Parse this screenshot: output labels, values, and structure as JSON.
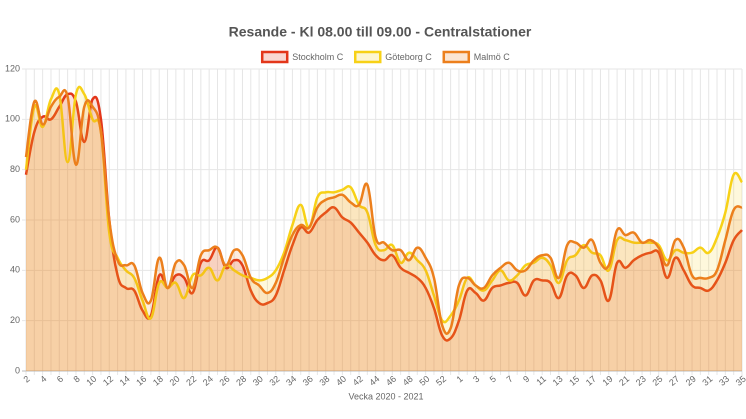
{
  "chart_data": {
    "type": "line",
    "title": "Resande - Kl 08.00 till 09.00 - Centralstationer",
    "x_label": "Vecka 2020 - 2021",
    "categories": [
      "2",
      null,
      "4",
      null,
      "6",
      null,
      "8",
      null,
      "10",
      null,
      "12",
      null,
      "14",
      null,
      "16",
      null,
      "18",
      null,
      "20",
      null,
      "22",
      null,
      "24",
      null,
      "26",
      null,
      "28",
      null,
      "30",
      null,
      "32",
      null,
      "34",
      null,
      "36",
      null,
      "38",
      null,
      "40",
      null,
      "42",
      null,
      "44",
      null,
      "46",
      null,
      "48",
      null,
      "50",
      null,
      "52",
      null,
      "1",
      null,
      "3",
      null,
      "5",
      null,
      "7",
      null,
      "9",
      null,
      "11",
      null,
      "13",
      null,
      "15",
      null,
      "17",
      null,
      "19",
      null,
      "21",
      null,
      "23",
      null,
      "25",
      null,
      "27",
      null,
      "29",
      null,
      "31",
      null,
      "33",
      null,
      "35"
    ],
    "series": [
      {
        "name": "Stockholm C",
        "color": "#e3361a",
        "values": [
          78,
          95,
          101,
          100,
          105,
          110,
          107,
          91,
          108,
          100,
          60,
          38,
          33,
          32,
          24,
          22,
          38,
          33,
          38,
          37,
          31,
          43,
          44,
          49,
          41,
          44,
          42,
          32,
          27,
          27,
          30,
          40,
          50,
          57,
          55,
          60,
          63,
          65,
          61,
          59,
          55,
          51,
          46,
          44,
          46,
          41,
          39,
          37,
          33,
          25,
          14,
          13,
          20,
          32,
          31,
          28,
          33,
          34,
          35,
          35,
          30,
          36,
          36,
          35,
          29,
          38,
          38,
          33,
          38,
          36,
          28,
          43,
          41,
          44,
          46,
          47,
          47,
          37,
          45,
          40,
          34,
          33,
          32,
          36,
          43,
          52,
          56
        ]
      },
      {
        "name": "Göteborg C",
        "color": "#f7d117",
        "values": [
          80,
          105,
          97,
          108,
          110,
          83,
          110,
          110,
          100,
          95,
          55,
          45,
          40,
          37,
          28,
          21,
          35,
          33,
          35,
          29,
          38,
          38,
          41,
          36,
          42,
          40,
          38,
          37,
          36,
          37,
          40,
          47,
          58,
          66,
          57,
          69,
          71,
          71,
          72,
          73,
          66,
          63,
          50,
          48,
          50,
          43,
          47,
          44,
          40,
          30,
          20,
          22,
          28,
          37,
          34,
          32,
          36,
          40,
          36,
          38,
          42,
          43,
          45,
          42,
          35,
          44,
          46,
          50,
          47,
          46,
          40,
          52,
          52,
          51,
          51,
          51,
          50,
          44,
          48,
          47,
          47,
          49,
          47,
          53,
          63,
          78,
          75
        ]
      },
      {
        "name": "Malmö C",
        "color": "#ec7f1c",
        "values": [
          85,
          107,
          98,
          105,
          109,
          109,
          82,
          105,
          105,
          95,
          60,
          44,
          42,
          42,
          31,
          28,
          45,
          33,
          43,
          42,
          33,
          46,
          48,
          49,
          42,
          48,
          46,
          37,
          34,
          31,
          35,
          45,
          54,
          58,
          57,
          65,
          68,
          69,
          70,
          67,
          66,
          74,
          53,
          51,
          48,
          48,
          44,
          49,
          45,
          37,
          18,
          17,
          34,
          37,
          34,
          33,
          38,
          41,
          43,
          40,
          40,
          44,
          46,
          45,
          37,
          50,
          51,
          49,
          52,
          43,
          42,
          56,
          54,
          55,
          51,
          52,
          49,
          42,
          52,
          49,
          38,
          37,
          37,
          40,
          52,
          64,
          65
        ]
      }
    ],
    "ylim": [
      0,
      120
    ],
    "yticks": [
      0,
      20,
      40,
      60,
      80,
      100,
      120
    ],
    "grid": true,
    "legend": "top"
  }
}
